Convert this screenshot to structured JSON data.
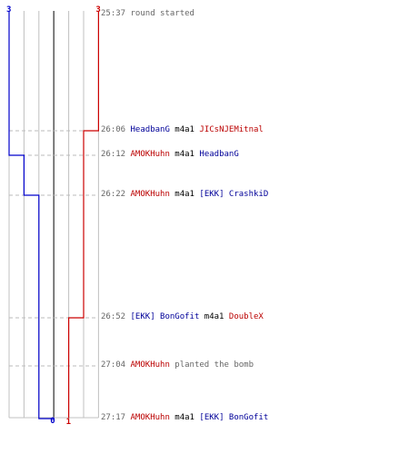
{
  "colors": {
    "team_blue": "#0000cc",
    "team_red": "#cc0000",
    "name_blue": "#000099",
    "name_red": "#bb0000",
    "grid": "#c0c0c0",
    "center": "#555555",
    "dash": "#bbbbbb",
    "time_text": "#666666"
  },
  "counts": {
    "blue_start": "3",
    "red_start": "3",
    "blue_end": "0",
    "red_end": "1"
  },
  "steps": {
    "blue": [
      3,
      3,
      2,
      1,
      1,
      1,
      0
    ],
    "red": [
      3,
      2,
      2,
      2,
      1,
      1,
      1
    ]
  },
  "events": [
    {
      "time": "25:37",
      "text": "round started"
    },
    {
      "time": "26:06",
      "actor": "HeadbanG",
      "actor_team": "blue",
      "verb": "m4a1",
      "target": "JICsNJEMitnal",
      "target_team": "red"
    },
    {
      "time": "26:12",
      "actor": "AMOKHuhn",
      "actor_team": "red",
      "verb": "m4a1",
      "target": "HeadbanG",
      "target_team": "blue"
    },
    {
      "time": "26:22",
      "actor": "AMOKHuhn",
      "actor_team": "red",
      "verb": "m4a1",
      "target": "[EKK] CrashkiD",
      "target_team": "blue"
    },
    {
      "time": "26:52",
      "actor": "[EKK] BonGofit",
      "actor_team": "blue",
      "verb": "m4a1",
      "target": "DoubleX",
      "target_team": "red"
    },
    {
      "time": "27:04",
      "actor": "AMOKHuhn",
      "actor_team": "red",
      "verb": "planted the bomb",
      "target": "",
      "target_team": ""
    },
    {
      "time": "27:17",
      "actor": "AMOKHuhn",
      "actor_team": "red",
      "verb": "m4a1",
      "target": "[EKK] BonGofit",
      "target_team": "blue"
    }
  ]
}
